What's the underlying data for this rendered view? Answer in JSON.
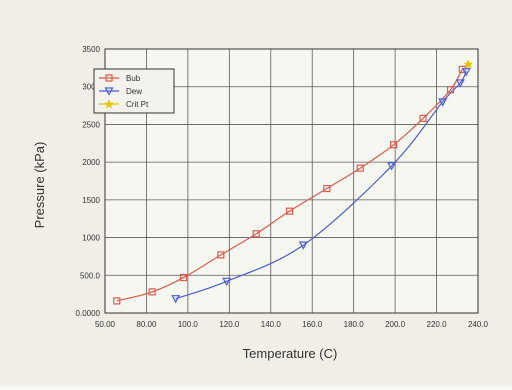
{
  "chart_data": {
    "type": "line",
    "xlabel": "Temperature (C)",
    "ylabel": "Pressure (kPa)",
    "xlim": [
      50,
      240
    ],
    "ylim": [
      0,
      3500
    ],
    "x_ticks": [
      "50.00",
      "80.00",
      "100.0",
      "120.0",
      "140.0",
      "160.0",
      "180.0",
      "200.0",
      "220.0",
      "240.0"
    ],
    "y_ticks": [
      "0.0000",
      "500.0",
      "1000",
      "1500",
      "2000",
      "2500",
      "3000",
      "3500"
    ],
    "grid": true,
    "legend_position": "top-left",
    "series": [
      {
        "name": "Bub",
        "color": "#e05a4a",
        "marker": "square",
        "points": [
          [
            56,
            160
          ],
          [
            74,
            280
          ],
          [
            90,
            470
          ],
          [
            109,
            770
          ],
          [
            127,
            1050
          ],
          [
            144,
            1350
          ],
          [
            163,
            1650
          ],
          [
            180,
            1920
          ],
          [
            197,
            2230
          ],
          [
            212,
            2580
          ],
          [
            226,
            2960
          ],
          [
            232,
            3230
          ]
        ]
      },
      {
        "name": "Dew",
        "color": "#4a5ed8",
        "marker": "triangle",
        "points": [
          [
            86,
            190
          ],
          [
            112,
            420
          ],
          [
            151,
            900
          ],
          [
            196,
            1950
          ],
          [
            222,
            2800
          ],
          [
            231,
            3050
          ],
          [
            234,
            3200
          ]
        ]
      },
      {
        "name": "Crit Pt",
        "color": "#e8c400",
        "marker": "star",
        "points": [
          [
            235,
            3300
          ]
        ]
      }
    ]
  }
}
